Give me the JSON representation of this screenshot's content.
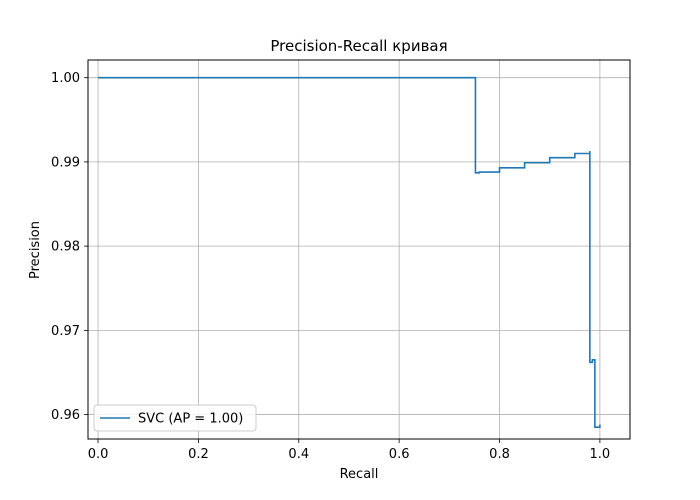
{
  "chart_data": {
    "type": "line",
    "title": "Precision-Recall кривая",
    "xlabel": "Recall",
    "ylabel": "Precision",
    "xlim": [
      -0.02,
      1.06
    ],
    "ylim": [
      0.9571,
      1.0021
    ],
    "xticks": [
      0.0,
      0.2,
      0.4,
      0.6,
      0.8,
      1.0
    ],
    "xtick_labels": [
      "0.0",
      "0.2",
      "0.4",
      "0.6",
      "0.8",
      "1.0"
    ],
    "yticks": [
      0.96,
      0.97,
      0.98,
      0.99,
      1.0
    ],
    "ytick_labels": [
      "0.96",
      "0.97",
      "0.98",
      "0.99",
      "1.00"
    ],
    "grid": true,
    "legend_placement": "lower-left",
    "series": [
      {
        "name": "SVC (AP = 1.00)",
        "color": "#1f77b4",
        "step": "post",
        "x": [
          0.0,
          0.752,
          0.752,
          0.76,
          0.8,
          0.85,
          0.9,
          0.95,
          0.98,
          0.98,
          0.985,
          0.985,
          0.99,
          0.99,
          1.0
        ],
        "y": [
          1.0,
          1.0,
          0.9887,
          0.9888,
          0.9893,
          0.9899,
          0.9905,
          0.991,
          0.9913,
          0.9662,
          0.9662,
          0.9665,
          0.9665,
          0.9585,
          0.9588
        ]
      }
    ]
  }
}
